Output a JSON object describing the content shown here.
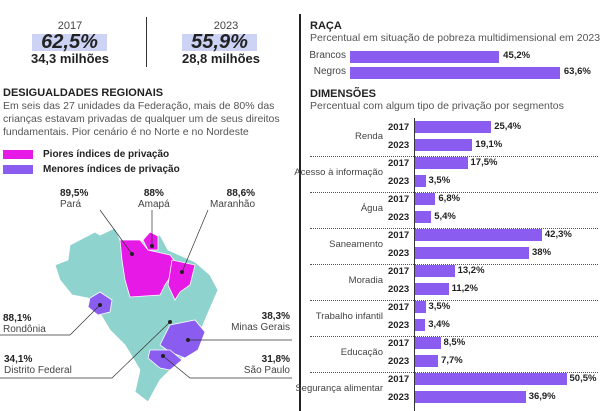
{
  "summary": {
    "items": [
      {
        "year": "2017",
        "percent": "62,5%",
        "count": "34,3 milhões"
      },
      {
        "year": "2023",
        "percent": "55,9%",
        "count": "28,8 milhões"
      }
    ]
  },
  "regional": {
    "title": "DESIGUALDADES REGIONAIS",
    "text": "Em seis das 27 unidades da Federação, mais de 80% das crianças estavam privadas de qualquer um de seus direitos fundamentais. Pior cenário é no Norte e no Nordeste",
    "legend": [
      {
        "label": "Piores índices de privação",
        "color": "#e619e6"
      },
      {
        "label": "Menores índices de privação",
        "color": "#8a5cf0"
      }
    ],
    "states": [
      {
        "name": "Pará",
        "value": "89,5%"
      },
      {
        "name": "Amapá",
        "value": "88%"
      },
      {
        "name": "Maranhão",
        "value": "88,6%"
      },
      {
        "name": "Rondônia",
        "value": "88,1%"
      },
      {
        "name": "Minas Gerais",
        "value": "38,3%"
      },
      {
        "name": "Distrito Federal",
        "value": "34,1%"
      },
      {
        "name": "São Paulo",
        "value": "31,8%"
      }
    ],
    "map_color": "#8fd3cf"
  },
  "chart_data": [
    {
      "type": "bar",
      "orientation": "horizontal",
      "title": "RAÇA",
      "subtitle": "Percentual em situação de pobreza multidimensional em 2023",
      "categories": [
        "Brancos",
        "Negros"
      ],
      "values": [
        45.2,
        63.6
      ],
      "labels": [
        "45,2%",
        "63,6%"
      ],
      "color": "#8a5cf0"
    },
    {
      "type": "bar",
      "orientation": "horizontal",
      "title": "DIMENSÕES",
      "subtitle": "Percentual com algum tipo de privação por segmentos",
      "color": "#8a5cf0",
      "categories": [
        "Renda",
        "Acesso à informação",
        "Água",
        "Saneamento",
        "Moradia",
        "Trabalho infantil",
        "Educação",
        "Segurança alimentar"
      ],
      "series": [
        {
          "name": "2017",
          "values": [
            25.4,
            17.5,
            6.8,
            42.3,
            13.2,
            3.5,
            8.5,
            50.5
          ],
          "labels": [
            "25,4%",
            "17,5%",
            "6,8%",
            "42,3%",
            "13,2%",
            "3,5%",
            "8,5%",
            "50,5%"
          ]
        },
        {
          "name": "2023",
          "values": [
            19.1,
            3.5,
            5.4,
            38,
            11.2,
            3.4,
            7.7,
            36.9
          ],
          "labels": [
            "19,1%",
            "3,5%",
            "5,4%",
            "38%",
            "11,2%",
            "3,4%",
            "7,7%",
            "36,9%"
          ]
        }
      ]
    }
  ]
}
